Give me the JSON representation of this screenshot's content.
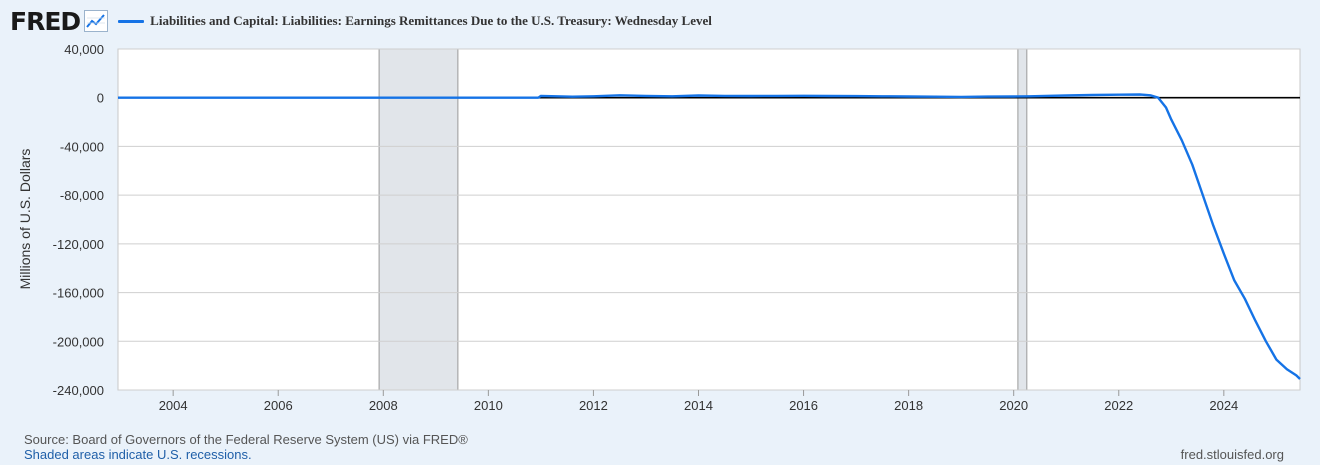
{
  "header": {
    "logo_text": "FRED",
    "series_title": "Liabilities and Capital: Liabilities: Earnings Remittances Due to the U.S. Treasury: Wednesday Level"
  },
  "footer": {
    "source": "Source: Board of Governors of the Federal Reserve System (US) via FRED®",
    "note": "Shaded areas indicate U.S. recessions.",
    "url": "fred.stlouisfed.org"
  },
  "colors": {
    "series": "#1573e6",
    "recession": "#e1e5ea",
    "background": "#eaf2fa",
    "plot": "#ffffff"
  },
  "chart_data": {
    "type": "line",
    "title": "",
    "xlabel": "",
    "ylabel": "Millions of U.S. Dollars",
    "xlim": [
      2002.95,
      2025.45
    ],
    "ylim": [
      -240000,
      40000
    ],
    "x_ticks": [
      2004,
      2006,
      2008,
      2010,
      2012,
      2014,
      2016,
      2018,
      2020,
      2022,
      2024
    ],
    "y_ticks": [
      40000,
      0,
      -40000,
      -80000,
      -120000,
      -160000,
      -200000,
      -240000
    ],
    "y_tick_labels": [
      "40,000",
      "0",
      "-40,000",
      "-80,000",
      "-120,000",
      "-160,000",
      "-200,000",
      "-240,000"
    ],
    "grid": true,
    "recessions": [
      [
        2007.92,
        2009.42
      ],
      [
        2020.08,
        2020.25
      ]
    ],
    "series": [
      {
        "color": "#1573e6",
        "points": [
          [
            2002.95,
            0
          ],
          [
            2010.95,
            0
          ],
          [
            2011.0,
            1500
          ],
          [
            2011.3,
            1200
          ],
          [
            2011.6,
            800
          ],
          [
            2012.0,
            1200
          ],
          [
            2012.5,
            2000
          ],
          [
            2013.0,
            1500
          ],
          [
            2013.5,
            1200
          ],
          [
            2014.0,
            1800
          ],
          [
            2014.5,
            1500
          ],
          [
            2015.0,
            1400
          ],
          [
            2015.5,
            1500
          ],
          [
            2016.0,
            1600
          ],
          [
            2016.5,
            1400
          ],
          [
            2017.0,
            1300
          ],
          [
            2017.5,
            1200
          ],
          [
            2018.0,
            1000
          ],
          [
            2018.5,
            800
          ],
          [
            2019.0,
            700
          ],
          [
            2019.5,
            900
          ],
          [
            2020.0,
            1000
          ],
          [
            2020.3,
            1200
          ],
          [
            2020.6,
            1500
          ],
          [
            2021.0,
            1800
          ],
          [
            2021.5,
            2200
          ],
          [
            2022.0,
            2500
          ],
          [
            2022.4,
            2600
          ],
          [
            2022.6,
            2000
          ],
          [
            2022.75,
            0
          ],
          [
            2022.9,
            -8000
          ],
          [
            2023.0,
            -18000
          ],
          [
            2023.2,
            -35000
          ],
          [
            2023.4,
            -55000
          ],
          [
            2023.6,
            -80000
          ],
          [
            2023.8,
            -105000
          ],
          [
            2024.0,
            -128000
          ],
          [
            2024.2,
            -150000
          ],
          [
            2024.4,
            -165000
          ],
          [
            2024.6,
            -183000
          ],
          [
            2024.8,
            -200000
          ],
          [
            2025.0,
            -215000
          ],
          [
            2025.2,
            -223000
          ],
          [
            2025.38,
            -228000
          ],
          [
            2025.45,
            -231000
          ]
        ]
      }
    ]
  }
}
